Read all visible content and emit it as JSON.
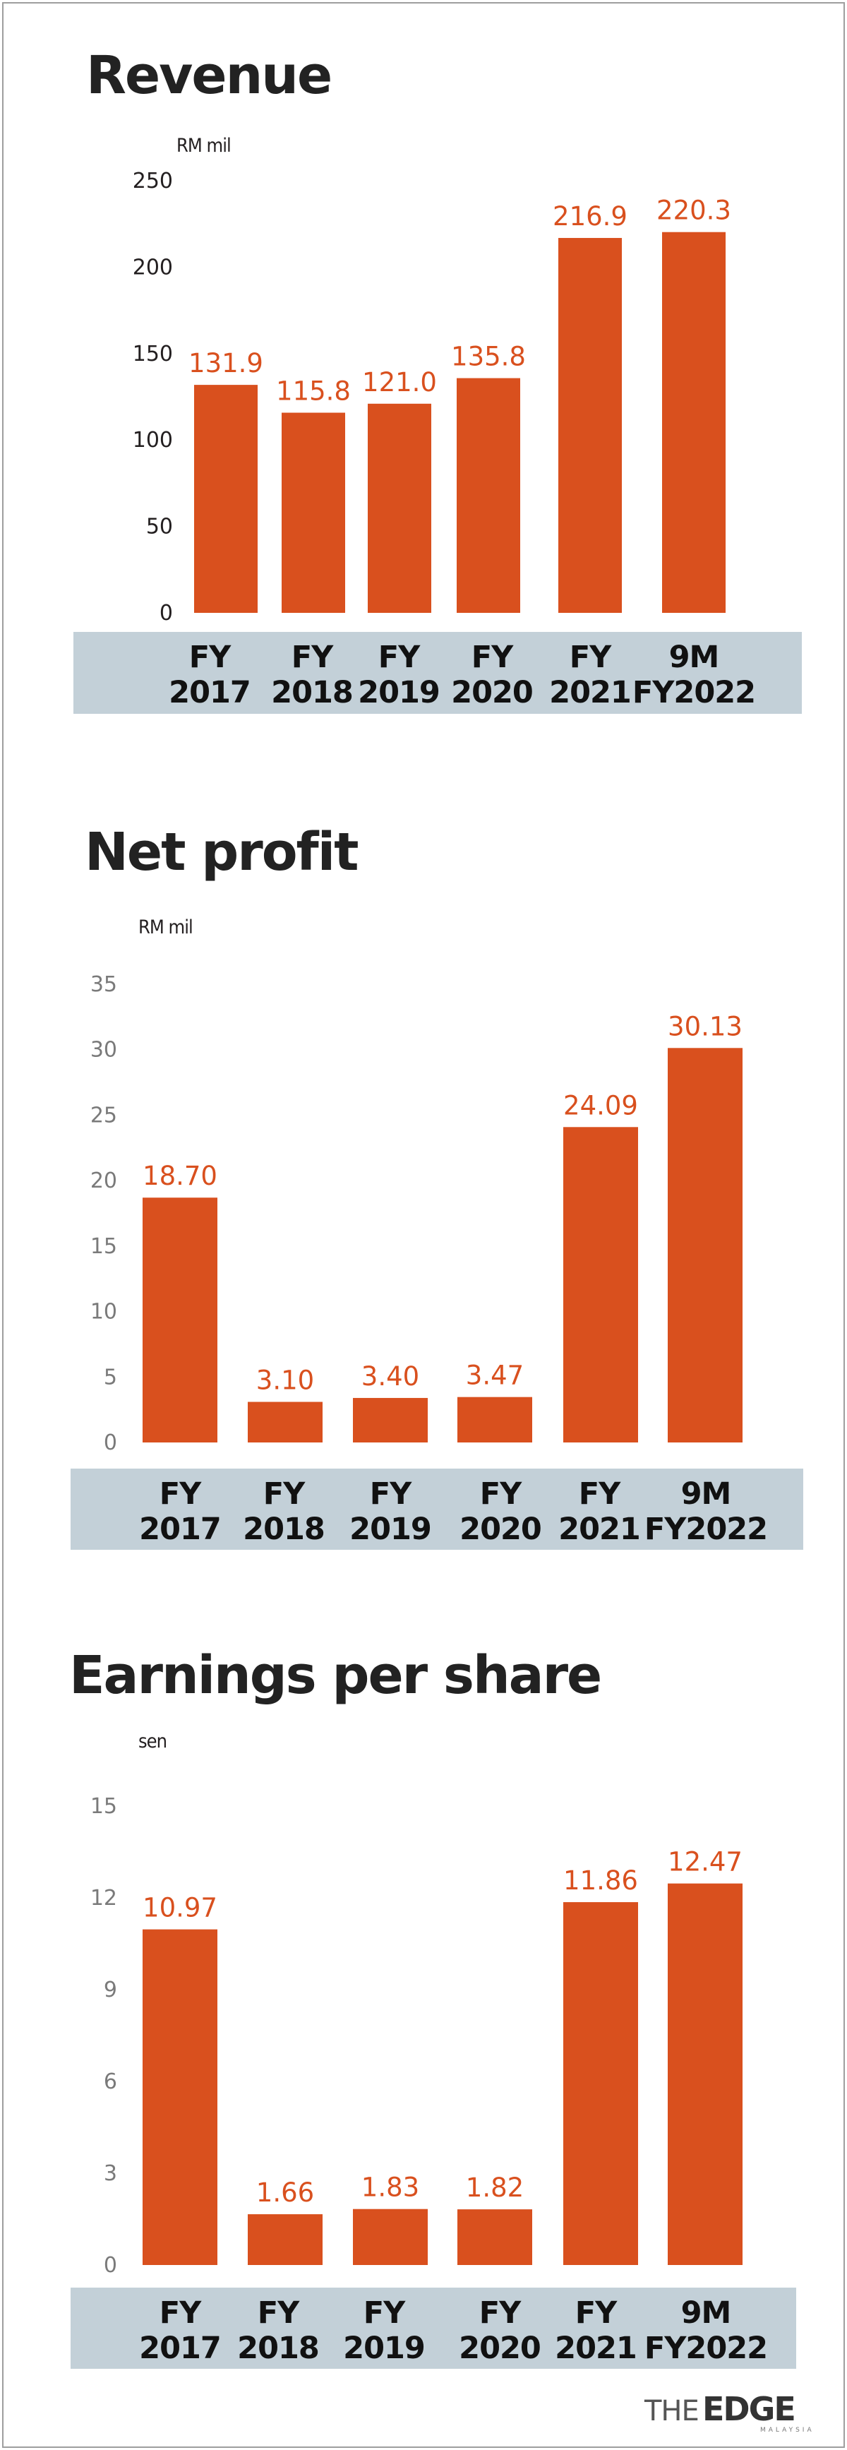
{
  "colors": {
    "bar": "#d9501e",
    "band": "#c3d0d8",
    "title": "#222222",
    "border": "#9e9e9e"
  },
  "logo": {
    "prefix": "THE",
    "name": "EDGE",
    "sub": "MALAYSIA"
  },
  "chart_data": [
    {
      "type": "bar",
      "title": "Revenue",
      "ylabel": "RM mil",
      "ylim": [
        0,
        250
      ],
      "yticks": [
        0,
        50,
        100,
        150,
        200,
        250
      ],
      "categories": [
        "FY 2017",
        "FY 2018",
        "FY 2019",
        "FY 2020",
        "FY 2021",
        "9M FY2022"
      ],
      "values": [
        131.9,
        115.8,
        121.0,
        135.8,
        216.9,
        220.3
      ],
      "data_labels": [
        "131.9",
        "115.8",
        "121.0",
        "135.8",
        "216.9",
        "220.3"
      ],
      "grid": false
    },
    {
      "type": "bar",
      "title": "Net profit",
      "ylabel": "RM mil",
      "ylim": [
        0,
        35
      ],
      "yticks": [
        0,
        5,
        10,
        15,
        20,
        25,
        30,
        35
      ],
      "categories": [
        "FY 2017",
        "FY 2018",
        "FY 2019",
        "FY 2020",
        "FY 2021",
        "9M FY2022"
      ],
      "values": [
        18.7,
        3.1,
        3.4,
        3.47,
        24.09,
        30.13
      ],
      "data_labels": [
        "18.70",
        "3.10",
        "3.40",
        "3.47",
        "24.09",
        "30.13"
      ],
      "grid": false
    },
    {
      "type": "bar",
      "title": "Earnings per share",
      "ylabel": "sen",
      "ylim": [
        0,
        15
      ],
      "yticks": [
        0,
        3,
        6,
        9,
        12,
        15
      ],
      "categories": [
        "FY 2017",
        "FY 2018",
        "FY 2019",
        "FY 2020",
        "FY 2021",
        "9M FY2022"
      ],
      "values": [
        10.97,
        1.66,
        1.83,
        1.82,
        11.86,
        12.47
      ],
      "data_labels": [
        "10.97",
        "1.66",
        "1.83",
        "1.82",
        "11.86",
        "12.47"
      ],
      "grid": false
    }
  ]
}
